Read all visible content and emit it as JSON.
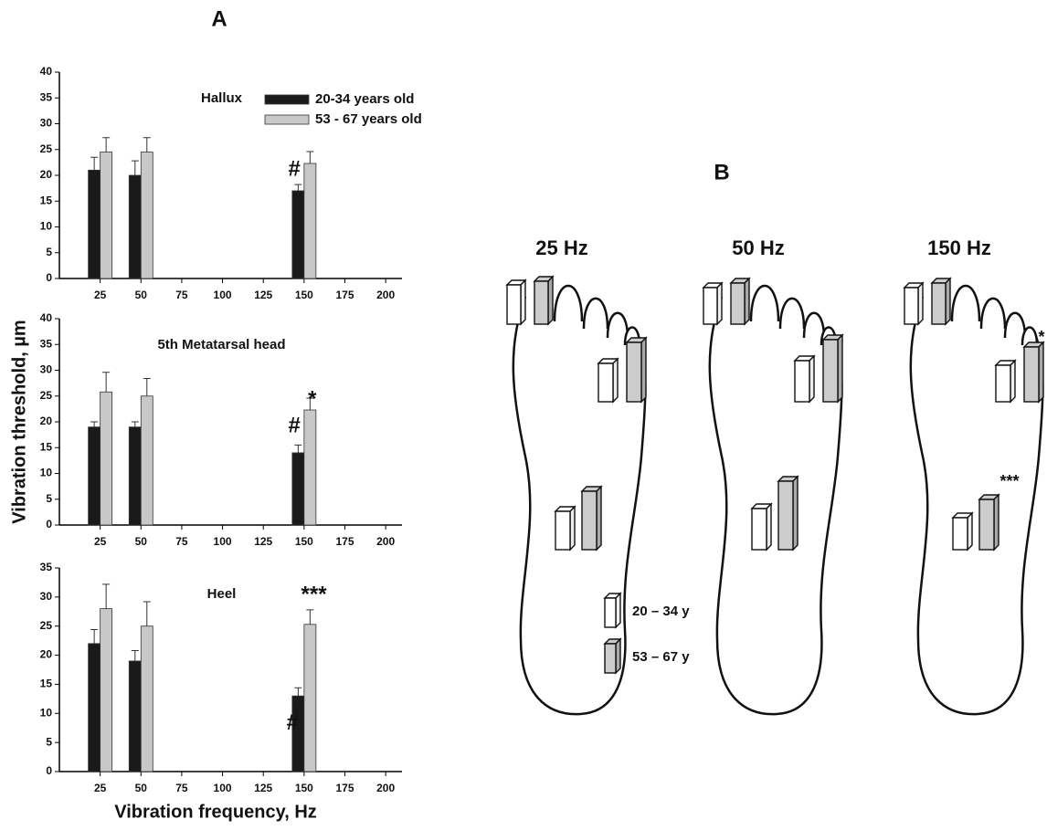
{
  "panel_a": {
    "label": "A",
    "ylabel": "Vibration threshold, µm",
    "xlabel": "Vibration frequency, Hz"
  },
  "chart_data": [
    {
      "type": "bar",
      "title": "Hallux",
      "x": [
        25,
        50,
        150
      ],
      "xlim": [
        0,
        210
      ],
      "xticks": [
        25,
        50,
        75,
        100,
        125,
        150,
        175,
        200
      ],
      "ylim": [
        0,
        40
      ],
      "yticks": [
        0,
        5,
        10,
        15,
        20,
        25,
        30,
        35,
        40
      ],
      "legend": "upper right",
      "series": [
        {
          "name": "20-34 years old",
          "color": "#1a1a1a",
          "values": [
            21,
            20,
            17
          ],
          "errors": [
            2.5,
            2.8,
            1.2
          ]
        },
        {
          "name": "53 - 67 years old",
          "color": "#c8c8c8",
          "values": [
            24.5,
            24.5,
            22.3
          ],
          "errors": [
            2.8,
            2.8,
            2.3
          ]
        }
      ],
      "annotations": [
        {
          "text": "#",
          "x": 144,
          "y": 21
        }
      ]
    },
    {
      "type": "bar",
      "title": "5th Metatarsal head",
      "x": [
        25,
        50,
        150
      ],
      "xlim": [
        0,
        210
      ],
      "xticks": [
        25,
        50,
        75,
        100,
        125,
        150,
        175,
        200
      ],
      "ylim": [
        0,
        40
      ],
      "yticks": [
        0,
        5,
        10,
        15,
        20,
        25,
        30,
        35,
        40
      ],
      "series": [
        {
          "name": "20-34 years old",
          "color": "#1a1a1a",
          "values": [
            19,
            19,
            14
          ],
          "errors": [
            1,
            1,
            1.5
          ]
        },
        {
          "name": "53 - 67 years old",
          "color": "#c8c8c8",
          "values": [
            25.8,
            25,
            22.3
          ],
          "errors": [
            3.8,
            3.4,
            2.3
          ]
        }
      ],
      "annotations": [
        {
          "text": "#",
          "x": 144,
          "y": 19.1
        },
        {
          "text": "*",
          "x": 155,
          "y": 24.2
        }
      ]
    },
    {
      "type": "bar",
      "title": "Heel",
      "x": [
        25,
        50,
        150
      ],
      "xlim": [
        0,
        210
      ],
      "xticks": [
        25,
        50,
        75,
        100,
        125,
        150,
        175,
        200
      ],
      "ylim": [
        0,
        35
      ],
      "yticks": [
        0,
        5,
        10,
        15,
        20,
        25,
        30,
        35
      ],
      "series": [
        {
          "name": "20-34 years old",
          "color": "#1a1a1a",
          "values": [
            22,
            19,
            13
          ],
          "errors": [
            2.4,
            1.8,
            1.4
          ]
        },
        {
          "name": "53 - 67 years old",
          "color": "#c8c8c8",
          "values": [
            28,
            25,
            25.3
          ],
          "errors": [
            4.2,
            4.2,
            2.5
          ]
        }
      ],
      "annotations": [
        {
          "text": "#",
          "x": 143,
          "y": 8.2
        },
        {
          "text": "***",
          "x": 156,
          "y": 30.3
        }
      ]
    }
  ],
  "panel_b": {
    "label": "B",
    "feet": [
      "25 Hz",
      "50 Hz",
      "150 Hz"
    ],
    "legend": [
      "20 – 34 y",
      "53 – 67 y"
    ],
    "annotations": [
      "*",
      "***"
    ]
  }
}
